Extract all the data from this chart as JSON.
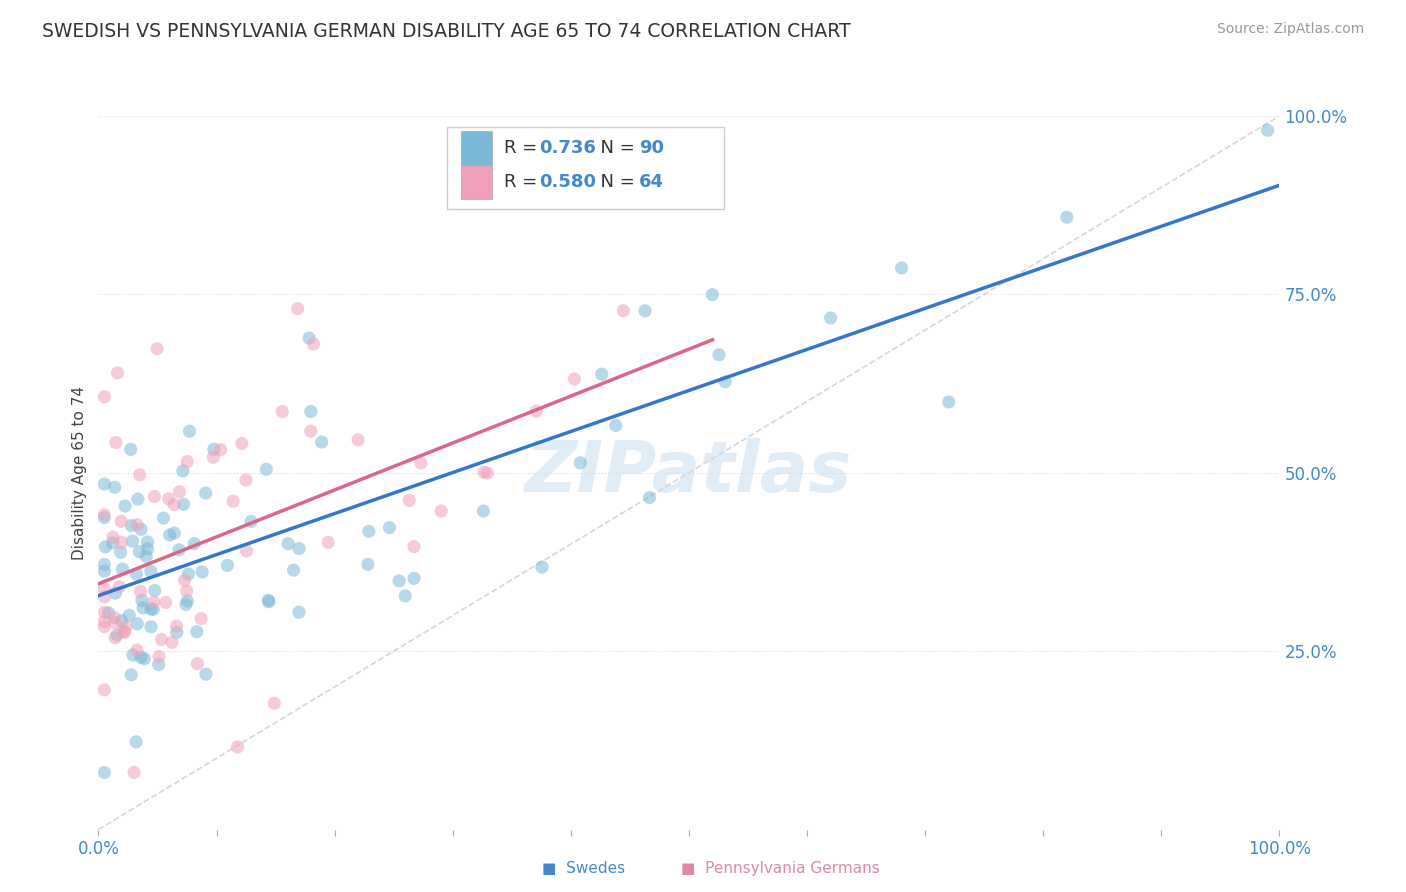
{
  "title": "SWEDISH VS PENNSYLVANIA GERMAN DISABILITY AGE 65 TO 74 CORRELATION CHART",
  "source": "Source: ZipAtlas.com",
  "ylabel": "Disability Age 65 to 74",
  "legend_swedish_R": 0.736,
  "legend_swedish_N": 90,
  "legend_pg_R": 0.58,
  "legend_pg_N": 64,
  "swedish_color": "#7ab8d8",
  "pg_color": "#f0a0b8",
  "regression_line_swedish_color": "#3377cc",
  "regression_line_pg_color": "#dd6688",
  "diagonal_color": "#cccccc",
  "background_color": "#ffffff",
  "watermark_text": "ZIPatlas",
  "watermark_color": "#ddeeff",
  "title_color": "#333333",
  "source_color": "#999999",
  "tick_color": "#4488cc",
  "ylabel_color": "#444444"
}
